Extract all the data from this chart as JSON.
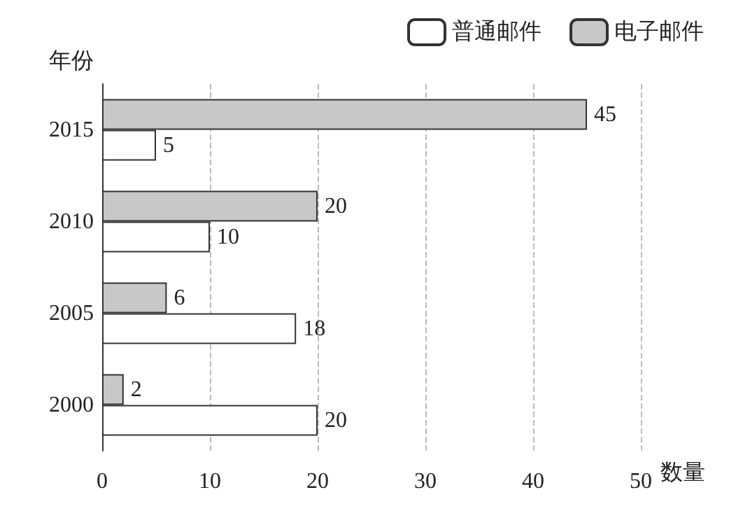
{
  "chart_data": {
    "type": "bar",
    "orientation": "horizontal",
    "ylabel": "年份",
    "xlabel": "数量",
    "categories": [
      "2015",
      "2010",
      "2005",
      "2000"
    ],
    "series": [
      {
        "name": "普通邮件",
        "color": "#ffffff",
        "values": [
          5,
          10,
          18,
          20
        ]
      },
      {
        "name": "电子邮件",
        "color": "#c8c8c8",
        "values": [
          45,
          20,
          6,
          2
        ]
      }
    ],
    "xlim": [
      0,
      50
    ],
    "xticks": [
      0,
      10,
      20,
      30,
      40,
      50
    ],
    "grid": "x",
    "legend": "top right",
    "data_labels": true
  }
}
